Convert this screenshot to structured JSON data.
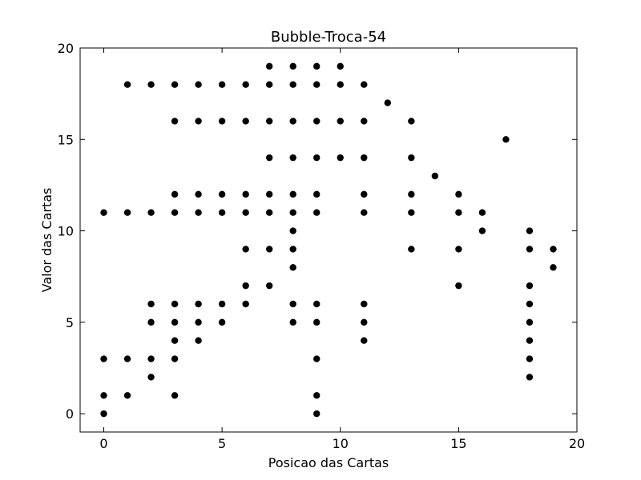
{
  "chart_data": {
    "type": "scatter",
    "title": "Bubble-Troca-54",
    "xlabel": "Posicao das Cartas",
    "ylabel": "Valor das Cartas",
    "xlim": [
      -1,
      20
    ],
    "ylim": [
      -1,
      20
    ],
    "xticks": [
      0,
      5,
      10,
      15,
      20
    ],
    "yticks": [
      0,
      5,
      10,
      15,
      20
    ],
    "grid": false,
    "marker_color": "#000000",
    "points": [
      [
        0,
        0
      ],
      [
        0,
        1
      ],
      [
        0,
        3
      ],
      [
        0,
        11
      ],
      [
        1,
        1
      ],
      [
        1,
        3
      ],
      [
        1,
        11
      ],
      [
        1,
        18
      ],
      [
        2,
        2
      ],
      [
        2,
        3
      ],
      [
        2,
        5
      ],
      [
        2,
        6
      ],
      [
        2,
        11
      ],
      [
        2,
        18
      ],
      [
        3,
        1
      ],
      [
        3,
        3
      ],
      [
        3,
        4
      ],
      [
        3,
        5
      ],
      [
        3,
        6
      ],
      [
        3,
        11
      ],
      [
        3,
        12
      ],
      [
        3,
        16
      ],
      [
        3,
        18
      ],
      [
        4,
        4
      ],
      [
        4,
        5
      ],
      [
        4,
        6
      ],
      [
        4,
        11
      ],
      [
        4,
        12
      ],
      [
        4,
        16
      ],
      [
        4,
        18
      ],
      [
        5,
        5
      ],
      [
        5,
        6
      ],
      [
        5,
        11
      ],
      [
        5,
        12
      ],
      [
        5,
        16
      ],
      [
        5,
        18
      ],
      [
        6,
        6
      ],
      [
        6,
        7
      ],
      [
        6,
        9
      ],
      [
        6,
        11
      ],
      [
        6,
        12
      ],
      [
        6,
        16
      ],
      [
        6,
        18
      ],
      [
        7,
        7
      ],
      [
        7,
        9
      ],
      [
        7,
        11
      ],
      [
        7,
        12
      ],
      [
        7,
        14
      ],
      [
        7,
        16
      ],
      [
        7,
        18
      ],
      [
        7,
        19
      ],
      [
        8,
        5
      ],
      [
        8,
        6
      ],
      [
        8,
        8
      ],
      [
        8,
        9
      ],
      [
        8,
        10
      ],
      [
        8,
        11
      ],
      [
        8,
        12
      ],
      [
        8,
        14
      ],
      [
        8,
        16
      ],
      [
        8,
        18
      ],
      [
        8,
        19
      ],
      [
        9,
        0
      ],
      [
        9,
        1
      ],
      [
        9,
        3
      ],
      [
        9,
        5
      ],
      [
        9,
        6
      ],
      [
        9,
        11
      ],
      [
        9,
        12
      ],
      [
        9,
        14
      ],
      [
        9,
        16
      ],
      [
        9,
        18
      ],
      [
        9,
        19
      ],
      [
        10,
        14
      ],
      [
        10,
        16
      ],
      [
        10,
        18
      ],
      [
        10,
        19
      ],
      [
        11,
        4
      ],
      [
        11,
        5
      ],
      [
        11,
        6
      ],
      [
        11,
        11
      ],
      [
        11,
        12
      ],
      [
        11,
        14
      ],
      [
        11,
        16
      ],
      [
        11,
        18
      ],
      [
        12,
        17
      ],
      [
        13,
        9
      ],
      [
        13,
        11
      ],
      [
        13,
        12
      ],
      [
        13,
        14
      ],
      [
        13,
        16
      ],
      [
        14,
        13
      ],
      [
        15,
        7
      ],
      [
        15,
        9
      ],
      [
        15,
        11
      ],
      [
        15,
        12
      ],
      [
        16,
        10
      ],
      [
        16,
        11
      ],
      [
        17,
        15
      ],
      [
        18,
        2
      ],
      [
        18,
        3
      ],
      [
        18,
        4
      ],
      [
        18,
        5
      ],
      [
        18,
        6
      ],
      [
        18,
        7
      ],
      [
        18,
        9
      ],
      [
        18,
        10
      ],
      [
        19,
        8
      ],
      [
        19,
        9
      ]
    ]
  }
}
